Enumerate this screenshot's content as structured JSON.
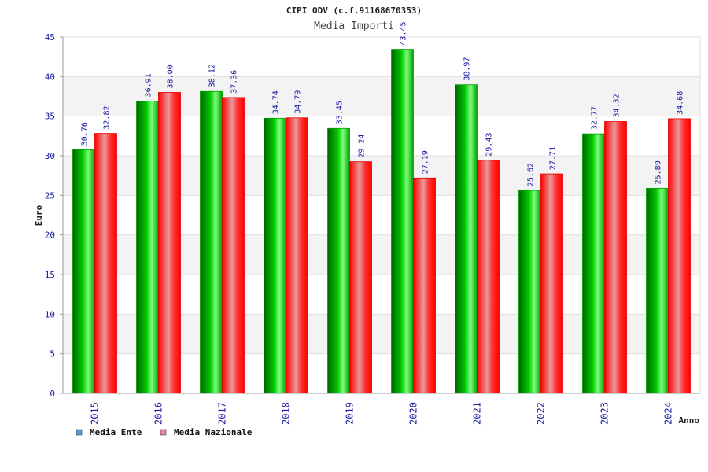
{
  "chart_data": {
    "type": "bar",
    "title": "CIPI ODV (c.f.91168670353)",
    "subtitle": "Media Importi",
    "xlabel": "Anno",
    "ylabel": "Euro",
    "ylim": [
      0,
      45
    ],
    "yticks": [
      0,
      5,
      10,
      15,
      20,
      25,
      30,
      35,
      40,
      45
    ],
    "categories": [
      "2015",
      "2016",
      "2017",
      "2018",
      "2019",
      "2020",
      "2021",
      "2022",
      "2023",
      "2024"
    ],
    "series": [
      {
        "name": "Media Ente",
        "values": [
          30.76,
          36.91,
          38.12,
          34.74,
          33.45,
          43.45,
          38.97,
          25.62,
          32.77,
          25.89
        ],
        "labels": [
          "30.76",
          "36.91",
          "38.12",
          "34.74",
          "33.45",
          "43.45",
          "38.97",
          "25.62",
          "32.77",
          "25.89"
        ],
        "color": "#00b400",
        "legend_color": "#5b9bd5"
      },
      {
        "name": "Media Nazionale",
        "values": [
          32.82,
          38.0,
          37.36,
          34.79,
          29.24,
          27.19,
          29.43,
          27.71,
          34.32,
          34.68
        ],
        "labels": [
          "32.82",
          "38.00",
          "37.36",
          "34.79",
          "29.24",
          "27.19",
          "29.43",
          "27.71",
          "34.32",
          "34.68"
        ],
        "color": "#ff1a1a",
        "legend_color": "#e87fb0"
      }
    ],
    "grid": true,
    "legend_position": "bottom-left"
  }
}
